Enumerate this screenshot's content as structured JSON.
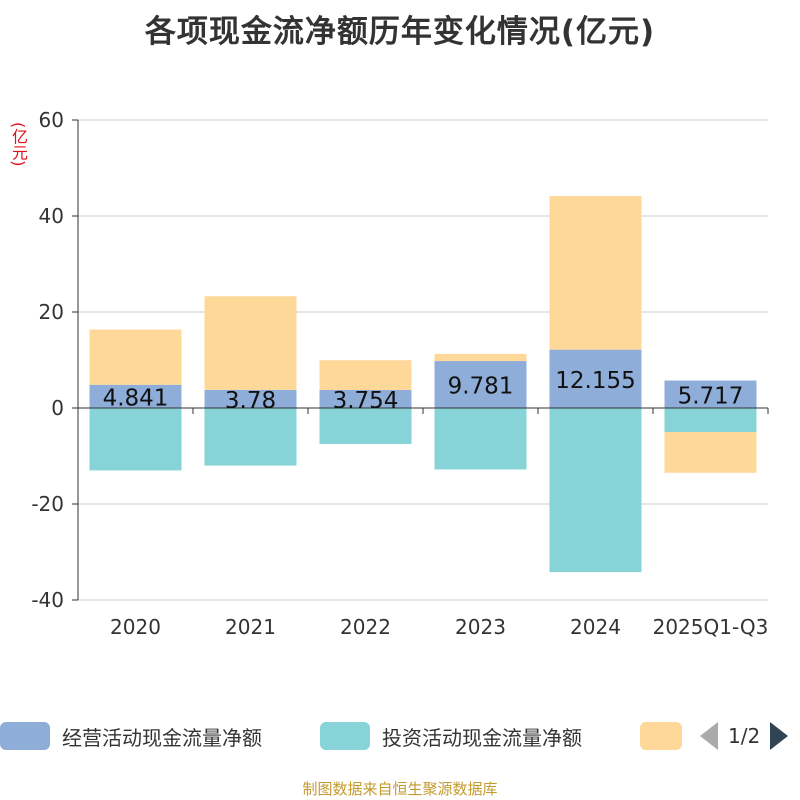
{
  "chart_data": {
    "type": "bar",
    "stacked": true,
    "title": "各项现金流净额历年变化情况(亿元)",
    "ylabel": "(亿元)",
    "ylim": [
      -40,
      60
    ],
    "yticks": [
      -40,
      -20,
      0,
      20,
      40,
      60
    ],
    "categories": [
      "2020",
      "2021",
      "2022",
      "2023",
      "2024",
      "2025Q1-Q3"
    ],
    "series": [
      {
        "name": "经营活动现金流量净额",
        "color": "#8eadd9",
        "values": [
          4.841,
          3.78,
          3.754,
          9.781,
          12.155,
          5.717
        ],
        "labels": [
          "4.841",
          "3.78",
          "3.754",
          "9.781",
          "12.155",
          "5.717"
        ]
      },
      {
        "name": "投资活动现金流量净额",
        "color": "#86d4d8",
        "values": [
          -13,
          -12,
          -7.5,
          -12.8,
          -34.2,
          -5
        ]
      },
      {
        "name": "",
        "color": "#fdd898",
        "values": [
          11.5,
          19.5,
          6.2,
          1.5,
          32,
          -8.5
        ]
      }
    ]
  },
  "legend": {
    "items": [
      {
        "label": "经营活动现金流量净额",
        "color": "#8eadd9"
      },
      {
        "label": "投资活动现金流量净额",
        "color": "#86d4d8"
      },
      {
        "label": "",
        "color": "#fdd898"
      }
    ],
    "page": "1/2"
  },
  "footer": "制图数据来自恒生聚源数据库"
}
